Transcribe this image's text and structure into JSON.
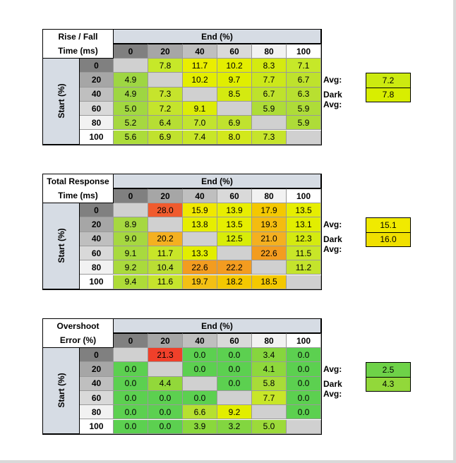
{
  "end_header": "End (%)",
  "start_header": "Start (%)",
  "columns": [
    "0",
    "20",
    "40",
    "60",
    "80",
    "100"
  ],
  "rows": [
    "0",
    "20",
    "40",
    "60",
    "80",
    "100"
  ],
  "colors": {
    "header_fill": "#d6dce4",
    "diagonal_fill": "#d0d0d0",
    "light_green": "#c4ea22",
    "green": "#92d050",
    "dark_green": "#5cd050",
    "yellow_green": "#d8ee10",
    "yellow": "#eeee00",
    "orange": "#f4b020",
    "orange_dark": "#f39c20",
    "red": "#f05b2e"
  },
  "tables": [
    {
      "id": "rise-fall",
      "title_lines": [
        "Rise / Fall",
        "Time (ms)"
      ],
      "cells": [
        [
          "",
          "7.8",
          "11.7",
          "10.2",
          "8.3",
          "7.1"
        ],
        [
          "4.9",
          "",
          "10.2",
          "9.7",
          "7.7",
          "6.7"
        ],
        [
          "4.9",
          "7.3",
          "",
          "8.5",
          "6.7",
          "6.3"
        ],
        [
          "5.0",
          "7.2",
          "9.1",
          "",
          "5.9",
          "5.9"
        ],
        [
          "5.2",
          "6.4",
          "7.0",
          "6.9",
          "",
          "5.9"
        ],
        [
          "5.6",
          "6.9",
          "7.4",
          "8.0",
          "7.3",
          ""
        ]
      ],
      "fills": [
        [
          "diag",
          "#c6e829",
          "#eaee00",
          "#e4ee00",
          "#d4ea10",
          "#c6e829"
        ],
        [
          "#9ed642",
          "diag",
          "#e4ee00",
          "#e0ee00",
          "#cce81a",
          "#bee22c"
        ],
        [
          "#9ed642",
          "#c6e42c",
          "diag",
          "#d4ea10",
          "#bee22c",
          "#b8e030"
        ],
        [
          "#a2d840",
          "#c4e42c",
          "#dcec08",
          "diag",
          "#aedc38",
          "#aedc38"
        ],
        [
          "#a6d840",
          "#b6de34",
          "#c2e42e",
          "#c0e22e",
          "diag",
          "#aedc38"
        ],
        [
          "#acdc3a",
          "#c0e22e",
          "#c8e628",
          "#d2e81c",
          "#c6e42c",
          "diag"
        ]
      ],
      "avg_label": "Avg:",
      "avg_value": "7.2",
      "avg_fill": "#ccea10",
      "dark_avg_label": "Dark Avg:",
      "dark_avg_value": "7.8",
      "dark_avg_fill": "#d8ee00"
    },
    {
      "id": "total-response",
      "title_lines": [
        "Total Response",
        "Time (ms)"
      ],
      "cells": [
        [
          "",
          "28.0",
          "15.9",
          "13.9",
          "17.9",
          "13.5"
        ],
        [
          "8.9",
          "",
          "13.8",
          "13.5",
          "19.3",
          "13.1"
        ],
        [
          "9.0",
          "20.2",
          "",
          "12.5",
          "21.0",
          "12.3"
        ],
        [
          "9.1",
          "11.7",
          "13.3",
          "",
          "22.6",
          "11.5"
        ],
        [
          "9.2",
          "10.4",
          "22.6",
          "22.2",
          "",
          "11.2"
        ],
        [
          "9.4",
          "11.6",
          "19.7",
          "18.2",
          "18.5",
          ""
        ]
      ],
      "fills": [
        [
          "diag",
          "#f05b2e",
          "#f0e800",
          "#e8ee00",
          "#f4c800",
          "#e6ee00"
        ],
        [
          "#a6d840",
          "diag",
          "#e6ee00",
          "#e6ee00",
          "#f4bc10",
          "#e2ee00"
        ],
        [
          "#a6d840",
          "#f4b020",
          "diag",
          "#d8ec08",
          "#f4b020",
          "#d4ea10"
        ],
        [
          "#a8da3e",
          "#c8e628",
          "#e2ee00",
          "diag",
          "#f39c20",
          "#c8e628"
        ],
        [
          "#aada3c",
          "#bade34",
          "#f39c20",
          "#f39c20",
          "diag",
          "#c4e42c"
        ],
        [
          "#aedc38",
          "#c6e42c",
          "#f4c014",
          "#f4c800",
          "#f4c800",
          "diag"
        ]
      ],
      "avg_label": "Avg:",
      "avg_value": "15.1",
      "avg_fill": "#f0ea00",
      "dark_avg_label": "Dark Avg:",
      "dark_avg_value": "16.0",
      "dark_avg_fill": "#f0e000"
    },
    {
      "id": "overshoot",
      "title_lines": [
        "Overshoot",
        "Error (%)"
      ],
      "cells": [
        [
          "",
          "21.3",
          "0.0",
          "0.0",
          "3.4",
          "0.0"
        ],
        [
          "0.0",
          "",
          "0.0",
          "0.0",
          "4.1",
          "0.0"
        ],
        [
          "0.0",
          "4.4",
          "",
          "0.0",
          "5.8",
          "0.0"
        ],
        [
          "0.0",
          "0.0",
          "0.0",
          "",
          "7.7",
          "0.0"
        ],
        [
          "0.0",
          "0.0",
          "6.6",
          "9.2",
          "",
          "0.0"
        ],
        [
          "0.0",
          "0.0",
          "3.9",
          "3.2",
          "5.0",
          ""
        ]
      ],
      "fills": [
        [
          "diag",
          "#f0402a",
          "#5cd050",
          "#5cd050",
          "#86d63e",
          "#5cd050"
        ],
        [
          "#5cd050",
          "diag",
          "#5cd050",
          "#5cd050",
          "#8ed83c",
          "#5cd050"
        ],
        [
          "#5cd050",
          "#92d83a",
          "diag",
          "#5cd050",
          "#a8dc38",
          "#5cd050"
        ],
        [
          "#5cd050",
          "#5cd050",
          "#5cd050",
          "diag",
          "#c8e628",
          "#5cd050"
        ],
        [
          "#5cd050",
          "#5cd050",
          "#b6e030",
          "#e2ee00",
          "diag",
          "#5cd050"
        ],
        [
          "#5cd050",
          "#5cd050",
          "#8ad83c",
          "#82d640",
          "#9cda3a",
          "diag"
        ]
      ],
      "avg_label": "Avg:",
      "avg_value": "2.5",
      "avg_fill": "#6ed248",
      "dark_avg_label": "Dark Avg:",
      "dark_avg_value": "4.3",
      "dark_avg_fill": "#92d83a"
    }
  ]
}
